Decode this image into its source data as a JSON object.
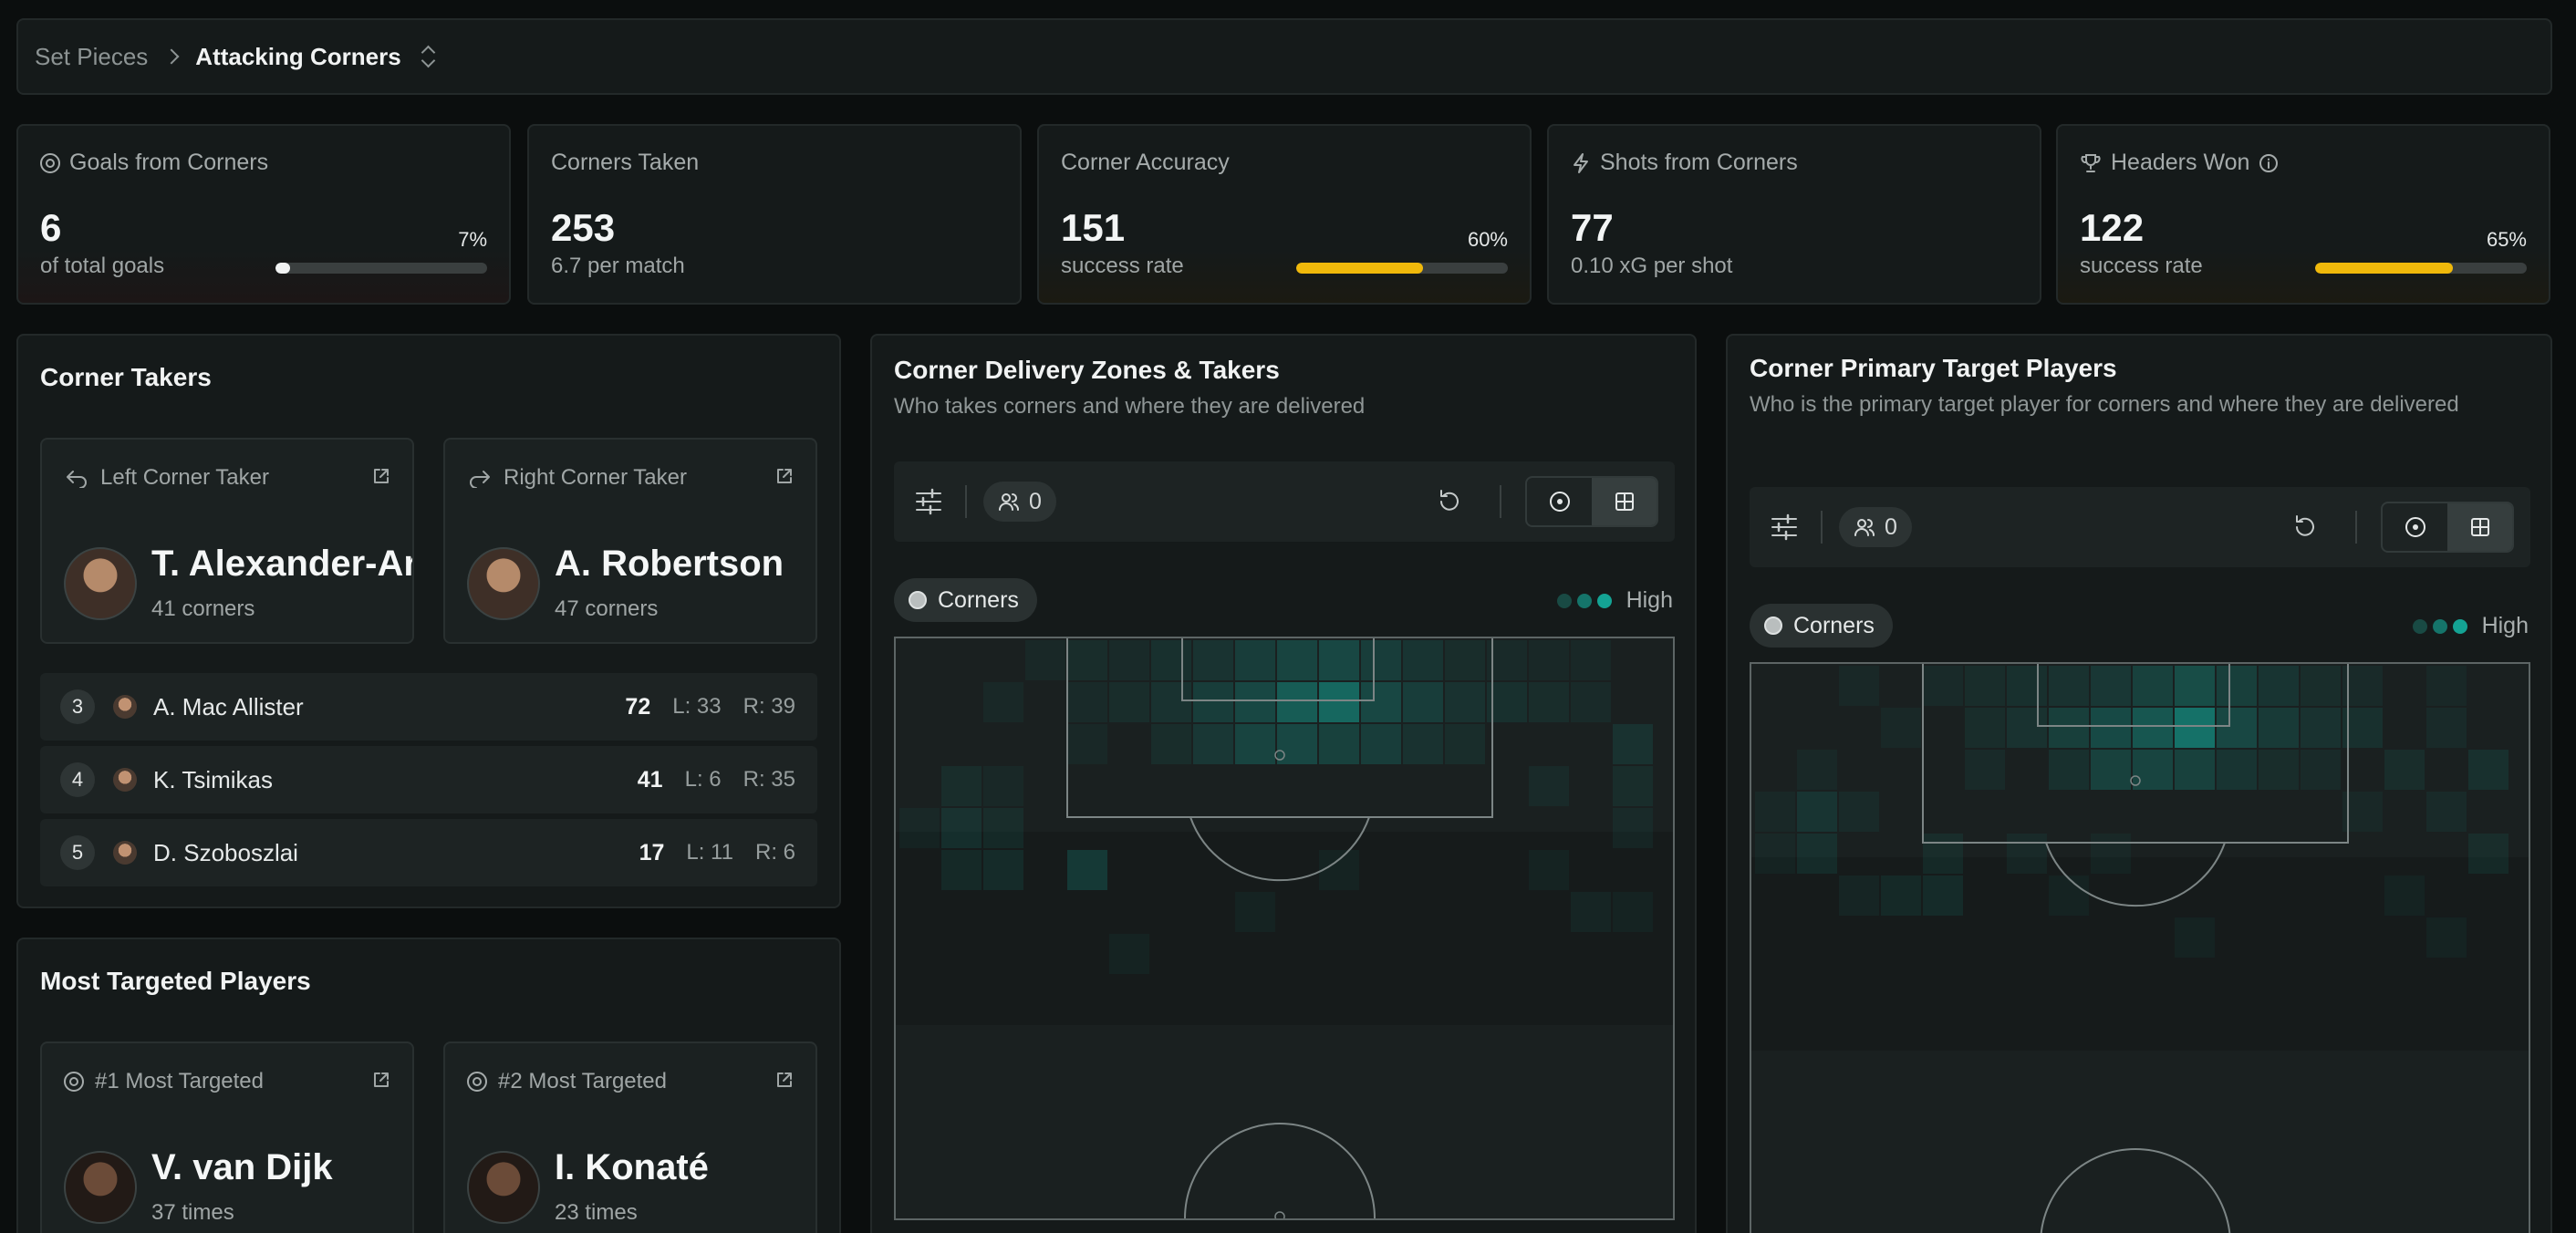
{
  "breadcrumb": {
    "parent": "Set Pieces",
    "current": "Attacking Corners"
  },
  "stats": [
    {
      "label": "Goals from Corners",
      "icon": "target-icon",
      "value": "6",
      "sub": "of total goals",
      "pct": "7%",
      "fill": 0.07,
      "color": "#f1f3f3",
      "tint": "red"
    },
    {
      "label": "Corners Taken",
      "icon": "",
      "value": "253",
      "sub": "6.7 per match"
    },
    {
      "label": "Corner Accuracy",
      "icon": "",
      "value": "151",
      "sub": "success rate",
      "pct": "60%",
      "fill": 0.6,
      "color": "#f0b90b",
      "tint": "gold"
    },
    {
      "label": "Shots from Corners",
      "icon": "lightning-icon",
      "value": "77",
      "sub": "0.10 xG per shot"
    },
    {
      "label": "Headers Won",
      "icon": "trophy-icon",
      "value": "122",
      "sub": "success rate",
      "pct": "65%",
      "fill": 0.65,
      "color": "#f0b90b",
      "tint": "gold"
    }
  ],
  "corner_takers": {
    "title": "Corner Takers",
    "left": {
      "label": "Left Corner Taker",
      "name": "T. Alexander-Arnold",
      "count": "41 corners"
    },
    "right": {
      "label": "Right Corner Taker",
      "name": "A. Robertson",
      "count": "47 corners"
    },
    "others": [
      {
        "rank": "3",
        "name": "A. Mac Allister",
        "total": "72",
        "left": "L: 33",
        "right": "R: 39"
      },
      {
        "rank": "4",
        "name": "K. Tsimikas",
        "total": "41",
        "left": "L: 6",
        "right": "R: 35"
      },
      {
        "rank": "5",
        "name": "D. Szoboszlai",
        "total": "17",
        "left": "L: 11",
        "right": "R: 6"
      }
    ]
  },
  "most_targeted": {
    "title": "Most Targeted Players",
    "first": {
      "label": "#1 Most Targeted",
      "name": "V. van Dijk",
      "count": "37 times"
    },
    "second": {
      "label": "#2 Most Targeted",
      "name": "I. Konaté",
      "count": "23 times"
    }
  },
  "delivery": {
    "title": "Corner Delivery Zones & Takers",
    "subtitle": "Who takes corners and where they are delivered",
    "player_filter_count": "0",
    "chip": "Corners",
    "legend": "High"
  },
  "targets": {
    "title": "Corner Primary Target Players",
    "subtitle": "Who is the primary target player for corners and where they are delivered",
    "player_filter_count": "0",
    "chip": "Corners",
    "legend": "High"
  },
  "colors": {
    "accent": "#14a394",
    "gold": "#f0b90b"
  }
}
